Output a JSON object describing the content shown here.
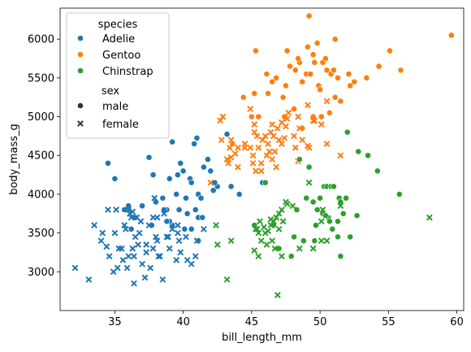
{
  "chart_data": {
    "type": "scatter",
    "xlabel": "bill_length_mm",
    "ylabel": "body_mass_g",
    "xlim": [
      31,
      60.5
    ],
    "ylim": [
      2500,
      6400
    ],
    "xticks": [
      35,
      40,
      45,
      50,
      55,
      60
    ],
    "yticks": [
      3000,
      3500,
      4000,
      4500,
      5000,
      5500,
      6000
    ],
    "grid": false,
    "legend_position": "top-left",
    "legend": {
      "hue_title": "species",
      "style_title": "sex",
      "hue_entries": [
        {
          "label": "Adelie",
          "color": "#1f77b4"
        },
        {
          "label": "Gentoo",
          "color": "#ff7f0e"
        },
        {
          "label": "Chinstrap",
          "color": "#2ca02c"
        }
      ],
      "style_entries": [
        {
          "label": "male",
          "marker": "circle"
        },
        {
          "label": "female",
          "marker": "x"
        }
      ]
    },
    "series": [
      {
        "name": "Adelie",
        "sex": "male",
        "marker": "circle",
        "color": "#1f77b4",
        "points": [
          [
            34.5,
            4400
          ],
          [
            35.0,
            4200
          ],
          [
            36.0,
            3850
          ],
          [
            36.5,
            3700
          ],
          [
            37.0,
            3850
          ],
          [
            37.5,
            4475
          ],
          [
            37.8,
            4250
          ],
          [
            38.0,
            3900
          ],
          [
            38.5,
            3950
          ],
          [
            38.8,
            3800
          ],
          [
            39.0,
            4200
          ],
          [
            39.2,
            4675
          ],
          [
            39.5,
            4000
          ],
          [
            39.6,
            4250
          ],
          [
            39.7,
            3800
          ],
          [
            39.8,
            4400
          ],
          [
            40.0,
            4300
          ],
          [
            40.2,
            3950
          ],
          [
            40.5,
            4200
          ],
          [
            40.6,
            4150
          ],
          [
            40.8,
            4650
          ],
          [
            41.0,
            4725
          ],
          [
            41.1,
            4000
          ],
          [
            41.3,
            3950
          ],
          [
            41.5,
            4350
          ],
          [
            41.8,
            4450
          ],
          [
            42.0,
            4300
          ],
          [
            42.2,
            4050
          ],
          [
            42.5,
            4100
          ],
          [
            43.2,
            4775
          ],
          [
            43.5,
            4100
          ],
          [
            44.1,
            4000
          ],
          [
            45.8,
            4150
          ],
          [
            41.1,
            3700
          ],
          [
            40.6,
            3550
          ],
          [
            39.2,
            3600
          ],
          [
            37.7,
            3600
          ],
          [
            38.6,
            3800
          ],
          [
            40.3,
            3750
          ],
          [
            42.3,
            4150
          ],
          [
            41.4,
            3700
          ],
          [
            39.0,
            3650
          ],
          [
            41.1,
            3400
          ],
          [
            40.9,
            3800
          ],
          [
            40.1,
            3550
          ],
          [
            38.8,
            3650
          ],
          [
            36.2,
            3550
          ],
          [
            35.7,
            3800
          ]
        ]
      },
      {
        "name": "Adelie",
        "sex": "female",
        "marker": "x",
        "color": "#1f77b4",
        "points": [
          [
            32.1,
            3050
          ],
          [
            33.1,
            2900
          ],
          [
            33.5,
            3600
          ],
          [
            34.0,
            3400
          ],
          [
            34.4,
            3325
          ],
          [
            34.6,
            3200
          ],
          [
            34.5,
            3800
          ],
          [
            35.0,
            3500
          ],
          [
            35.1,
            3800
          ],
          [
            35.2,
            3050
          ],
          [
            35.5,
            3300
          ],
          [
            35.6,
            3150
          ],
          [
            35.7,
            3600
          ],
          [
            35.9,
            3050
          ],
          [
            36.0,
            3200
          ],
          [
            36.2,
            3700
          ],
          [
            36.3,
            3300
          ],
          [
            36.4,
            2850
          ],
          [
            36.5,
            3450
          ],
          [
            36.6,
            3700
          ],
          [
            36.7,
            3350
          ],
          [
            36.8,
            3500
          ],
          [
            37.0,
            3100
          ],
          [
            37.2,
            2925
          ],
          [
            37.3,
            3350
          ],
          [
            37.5,
            3600
          ],
          [
            37.6,
            3050
          ],
          [
            37.8,
            3300
          ],
          [
            38.0,
            3450
          ],
          [
            38.1,
            3400
          ],
          [
            38.2,
            3200
          ],
          [
            38.5,
            2900
          ],
          [
            38.6,
            3750
          ],
          [
            38.8,
            3450
          ],
          [
            39.0,
            3300
          ],
          [
            39.2,
            3550
          ],
          [
            39.5,
            3150
          ],
          [
            39.6,
            3500
          ],
          [
            39.8,
            3250
          ],
          [
            40.2,
            3450
          ],
          [
            40.6,
            3100
          ],
          [
            41.0,
            3400
          ],
          [
            41.5,
            3550
          ],
          [
            36.0,
            3800
          ],
          [
            36.9,
            3650
          ],
          [
            37.9,
            3950
          ],
          [
            39.6,
            3600
          ],
          [
            40.9,
            3200
          ],
          [
            38.1,
            3700
          ],
          [
            34.1,
            3500
          ],
          [
            35.3,
            3300
          ],
          [
            36.1,
            3750
          ],
          [
            38.3,
            3200
          ],
          [
            40.3,
            3150
          ],
          [
            39.7,
            3400
          ],
          [
            37.3,
            3250
          ],
          [
            36.3,
            3775
          ],
          [
            37.8,
            3700
          ],
          [
            34.9,
            3000
          ],
          [
            36.4,
            3200
          ],
          [
            35.8,
            3550
          ],
          [
            38.9,
            3450
          ]
        ]
      },
      {
        "name": "Gentoo",
        "sex": "male",
        "marker": "circle",
        "color": "#ff7f0e",
        "points": [
          [
            44.4,
            5250
          ],
          [
            45.2,
            5300
          ],
          [
            45.5,
            5000
          ],
          [
            46.1,
            5550
          ],
          [
            46.2,
            5300
          ],
          [
            46.5,
            5450
          ],
          [
            47.3,
            5250
          ],
          [
            47.5,
            5400
          ],
          [
            47.8,
            5650
          ],
          [
            48.1,
            5100
          ],
          [
            48.2,
            5600
          ],
          [
            48.5,
            5700
          ],
          [
            48.7,
            5450
          ],
          [
            49.0,
            5550
          ],
          [
            49.1,
            5900
          ],
          [
            49.2,
            6300
          ],
          [
            49.3,
            5550
          ],
          [
            49.5,
            5800
          ],
          [
            49.6,
            5700
          ],
          [
            49.8,
            5950
          ],
          [
            50.0,
            5350
          ],
          [
            50.2,
            5700
          ],
          [
            50.4,
            5750
          ],
          [
            50.5,
            5600
          ],
          [
            50.8,
            5550
          ],
          [
            51.1,
            5250
          ],
          [
            51.3,
            5500
          ],
          [
            51.5,
            5200
          ],
          [
            52.1,
            5550
          ],
          [
            52.5,
            5450
          ],
          [
            53.4,
            5500
          ],
          [
            54.3,
            5650
          ],
          [
            55.1,
            5850
          ],
          [
            55.9,
            5600
          ],
          [
            59.6,
            6050
          ],
          [
            45.3,
            5850
          ],
          [
            47.6,
            5850
          ],
          [
            48.4,
            5750
          ],
          [
            49.9,
            5400
          ],
          [
            50.7,
            5050
          ],
          [
            51.1,
            6000
          ],
          [
            52.2,
            5400
          ],
          [
            46.8,
            5500
          ],
          [
            45.0,
            5000
          ],
          [
            43.6,
            4650
          ],
          [
            47.4,
            5000
          ],
          [
            48.7,
            4850
          ],
          [
            49.5,
            5000
          ],
          [
            50.0,
            5350
          ],
          [
            51.0,
            5600
          ],
          [
            50.1,
            5000
          ]
        ]
      },
      {
        "name": "Gentoo",
        "sex": "female",
        "marker": "x",
        "color": "#ff7f0e",
        "points": [
          [
            42.7,
            4950
          ],
          [
            42.9,
            5000
          ],
          [
            43.2,
            4450
          ],
          [
            43.3,
            4400
          ],
          [
            43.5,
            4700
          ],
          [
            44.0,
            4350
          ],
          [
            44.5,
            4600
          ],
          [
            45.1,
            4500
          ],
          [
            45.2,
            4800
          ],
          [
            45.3,
            4300
          ],
          [
            45.4,
            4750
          ],
          [
            45.5,
            4600
          ],
          [
            45.7,
            4400
          ],
          [
            45.8,
            4700
          ],
          [
            46.1,
            4500
          ],
          [
            46.2,
            4650
          ],
          [
            46.4,
            4800
          ],
          [
            46.5,
            4900
          ],
          [
            46.7,
            4550
          ],
          [
            46.8,
            4350
          ],
          [
            46.9,
            4850
          ],
          [
            47.2,
            4650
          ],
          [
            47.5,
            4875
          ],
          [
            47.7,
            5050
          ],
          [
            48.1,
            4750
          ],
          [
            48.2,
            4600
          ],
          [
            48.4,
            5000
          ],
          [
            49.1,
            4625
          ],
          [
            49.5,
            4950
          ],
          [
            50.5,
            5200
          ],
          [
            42.0,
            4150
          ],
          [
            43.8,
            4525
          ],
          [
            44.9,
            4600
          ],
          [
            45.2,
            4900
          ],
          [
            46.6,
            4750
          ],
          [
            47.4,
            4725
          ],
          [
            48.5,
            4850
          ],
          [
            49.1,
            5150
          ],
          [
            50.1,
            4900
          ],
          [
            43.4,
            4600
          ],
          [
            42.8,
            4700
          ],
          [
            44.9,
            5100
          ],
          [
            45.1,
            4400
          ],
          [
            46.5,
            4450
          ],
          [
            47.2,
            4925
          ],
          [
            48.7,
            4700
          ],
          [
            49.6,
            4950
          ],
          [
            50.5,
            4650
          ],
          [
            51.5,
            4500
          ],
          [
            43.5,
            4475
          ],
          [
            44.5,
            4650
          ],
          [
            46.3,
            4550
          ],
          [
            47.6,
            4975
          ],
          [
            48.4,
            4425
          ],
          [
            49.2,
            4600
          ],
          [
            45.7,
            4300
          ],
          [
            47.0,
            4700
          ],
          [
            46.0,
            4750
          ],
          [
            44.0,
            4600
          ]
        ]
      },
      {
        "name": "Chinstrap",
        "sex": "male",
        "marker": "circle",
        "color": "#2ca02c",
        "points": [
          [
            45.2,
            3600
          ],
          [
            46.0,
            4150
          ],
          [
            46.6,
            3600
          ],
          [
            47.0,
            3300
          ],
          [
            48.1,
            3450
          ],
          [
            48.3,
            3800
          ],
          [
            48.8,
            3400
          ],
          [
            49.0,
            3950
          ],
          [
            49.2,
            4350
          ],
          [
            49.5,
            3900
          ],
          [
            49.7,
            3600
          ],
          [
            49.8,
            3800
          ],
          [
            50.0,
            3950
          ],
          [
            50.2,
            3750
          ],
          [
            50.3,
            4100
          ],
          [
            50.5,
            4100
          ],
          [
            50.6,
            3700
          ],
          [
            50.8,
            4100
          ],
          [
            51.0,
            4100
          ],
          [
            51.3,
            3650
          ],
          [
            51.4,
            3950
          ],
          [
            51.5,
            3900
          ],
          [
            51.7,
            3750
          ],
          [
            51.9,
            3950
          ],
          [
            52.0,
            4800
          ],
          [
            52.2,
            3450
          ],
          [
            52.7,
            3725
          ],
          [
            52.8,
            4550
          ],
          [
            53.5,
            4500
          ],
          [
            54.2,
            4300
          ],
          [
            55.8,
            4000
          ],
          [
            48.5,
            4450
          ],
          [
            47.9,
            3200
          ],
          [
            50.9,
            3550
          ],
          [
            49.6,
            3400
          ],
          [
            51.3,
            3450
          ],
          [
            51.5,
            3200
          ],
          [
            50.4,
            3725
          ],
          [
            50.7,
            3650
          ]
        ]
      },
      {
        "name": "Chinstrap",
        "sex": "female",
        "marker": "x",
        "color": "#2ca02c",
        "points": [
          [
            42.4,
            3600
          ],
          [
            42.5,
            3350
          ],
          [
            43.2,
            2900
          ],
          [
            43.5,
            3400
          ],
          [
            45.2,
            3275
          ],
          [
            45.4,
            3550
          ],
          [
            45.5,
            3500
          ],
          [
            45.6,
            3650
          ],
          [
            45.7,
            3400
          ],
          [
            45.9,
            3575
          ],
          [
            46.0,
            3500
          ],
          [
            46.1,
            3350
          ],
          [
            46.2,
            3525
          ],
          [
            46.4,
            3675
          ],
          [
            46.5,
            3400
          ],
          [
            46.6,
            3650
          ],
          [
            46.7,
            3300
          ],
          [
            46.8,
            3700
          ],
          [
            46.9,
            2700
          ],
          [
            47.0,
            3550
          ],
          [
            47.2,
            3800
          ],
          [
            47.5,
            3900
          ],
          [
            48.0,
            3850
          ],
          [
            48.5,
            3300
          ],
          [
            49.5,
            3300
          ],
          [
            50.1,
            3400
          ],
          [
            50.2,
            3800
          ],
          [
            50.5,
            3400
          ],
          [
            51.5,
            3850
          ],
          [
            58.0,
            3700
          ],
          [
            45.5,
            3200
          ],
          [
            47.6,
            3875
          ],
          [
            46.4,
            3600
          ],
          [
            49.2,
            4150
          ],
          [
            45.3,
            3550
          ],
          [
            47.3,
            3650
          ],
          [
            47.2,
            3200
          ],
          [
            50.1,
            3650
          ],
          [
            47.0,
            3750
          ]
        ]
      }
    ]
  }
}
